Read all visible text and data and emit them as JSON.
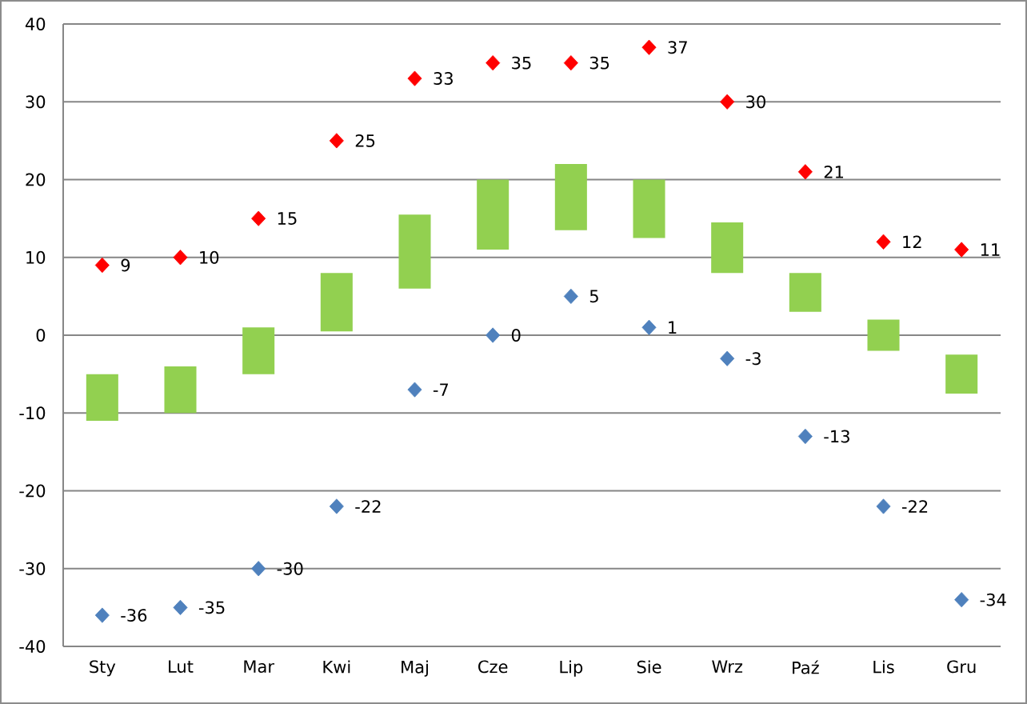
{
  "chart_data": {
    "type": "bar",
    "categories": [
      "Sty",
      "Lut",
      "Mar",
      "Kwi",
      "Maj",
      "Cze",
      "Lip",
      "Sie",
      "Wrz",
      "Paź",
      "Lis",
      "Gru"
    ],
    "ylim": [
      -40,
      40
    ],
    "yticks": [
      -40,
      -30,
      -20,
      -10,
      0,
      10,
      20,
      30,
      40
    ],
    "grid": "y",
    "series": [
      {
        "color": "#92d050",
        "base": [
          -11,
          -10,
          -5,
          0.5,
          6,
          11,
          13.5,
          12.5,
          8,
          3,
          -2,
          -7.5
        ],
        "values": [
          6,
          6,
          6,
          7.5,
          9.5,
          9,
          8.5,
          7.5,
          6.5,
          5,
          4,
          5
        ]
      },
      {
        "type": "scatter",
        "color": "#ff0000",
        "marker": "diamond",
        "x": [
          "Sty",
          "Lut",
          "Mar",
          "Kwi",
          "Maj",
          "Cze",
          "Lip",
          "Sie",
          "Wrz",
          "Paź",
          "Lis",
          "Gru"
        ],
        "values": [
          9,
          10,
          15,
          25,
          33,
          35,
          35,
          37,
          30,
          21,
          12,
          11
        ],
        "value_labels": [
          "9",
          "10",
          "15",
          "25",
          "33",
          "35",
          "35",
          "37",
          "30",
          "21",
          "12",
          "11"
        ]
      },
      {
        "type": "scatter",
        "color": "#4f81bd",
        "marker": "diamond",
        "x": [
          "Sty",
          "Lut",
          "Mar",
          "Kwi",
          "Maj",
          "Cze",
          "Lip",
          "Sie",
          "Wrz",
          "Paź",
          "Lis",
          "Gru"
        ],
        "values": [
          -36,
          -35,
          -30,
          -22,
          -7,
          0,
          5,
          1,
          -3,
          -13,
          -22,
          -34
        ],
        "value_labels": [
          "-36",
          "-35",
          "-30",
          "-22",
          "-7",
          "0",
          "5",
          "1",
          "-3",
          "-13",
          "-22",
          "-34"
        ]
      }
    ]
  }
}
